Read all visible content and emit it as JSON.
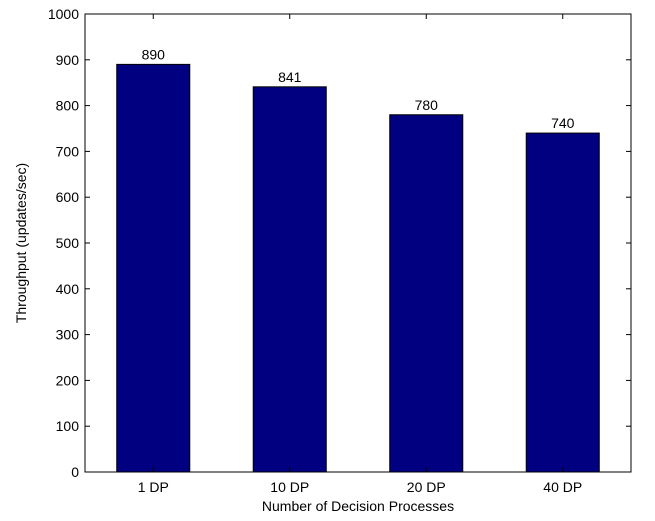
{
  "chart_data": {
    "type": "bar",
    "title": "",
    "xlabel": "Number of Decision Processes",
    "ylabel": "Throughput (updates/sec)",
    "categories": [
      "1 DP",
      "10 DP",
      "20 DP",
      "40 DP"
    ],
    "values": [
      890,
      841,
      780,
      740
    ],
    "data_labels": [
      "890",
      "841",
      "780",
      "740"
    ],
    "ylim": [
      0,
      1000
    ],
    "yticks": [
      0,
      100,
      200,
      300,
      400,
      500,
      600,
      700,
      800,
      900,
      1000
    ],
    "grid": false,
    "legend": "none",
    "bar_color": "#000080",
    "axis_color": "#000000"
  }
}
